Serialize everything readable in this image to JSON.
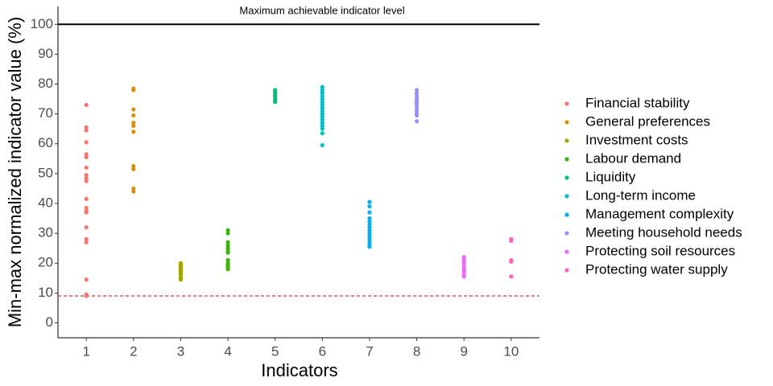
{
  "chart_data": {
    "type": "scatter",
    "x_label": "Indicators",
    "y_label": "Min-max normalized indicator value (%)",
    "annotation": "Maximum achievable indicator level",
    "xlim": [
      0.4,
      10.6
    ],
    "ylim": [
      -5,
      106
    ],
    "xticks": [
      1,
      2,
      3,
      4,
      5,
      6,
      7,
      8,
      9,
      10
    ],
    "yticks": [
      0,
      10,
      20,
      30,
      40,
      50,
      60,
      70,
      80,
      90,
      100
    ],
    "reference_lines": [
      {
        "y": 100,
        "color": "#000000",
        "dashed": false
      },
      {
        "y": 9,
        "color": "#e0302c",
        "dashed": true
      }
    ],
    "series": [
      {
        "name": "Financial stability",
        "color": "#F8766D",
        "x": [
          1,
          1,
          1,
          1,
          1,
          1,
          1,
          1,
          1,
          1,
          1,
          1,
          1,
          1,
          1,
          1,
          1,
          1,
          1,
          1
        ],
        "values": [
          73,
          65.5,
          64.5,
          60.5,
          56.5,
          55.5,
          52,
          49.5,
          48.5,
          47.5,
          41.5,
          38.5,
          37.5,
          37,
          32,
          28,
          27,
          14.5,
          9.5,
          9
        ]
      },
      {
        "name": "General preferences",
        "color": "#D89000",
        "x": [
          2,
          2,
          2,
          2,
          2,
          2,
          2,
          2,
          2,
          2,
          2
        ],
        "values": [
          78.5,
          78,
          71.5,
          69.5,
          67,
          66,
          64,
          52.5,
          51.5,
          45,
          44
        ]
      },
      {
        "name": "Investment costs",
        "color": "#A3A500",
        "x": [
          3,
          3,
          3,
          3,
          3,
          3,
          3,
          3,
          3,
          3,
          3
        ],
        "values": [
          20,
          19.5,
          19,
          18.5,
          18,
          17.5,
          17,
          16.5,
          16,
          15,
          14.5
        ]
      },
      {
        "name": "Labour demand",
        "color": "#39B600",
        "x": [
          4,
          4,
          4,
          4,
          4,
          4,
          4,
          4,
          4,
          4,
          4,
          4,
          4
        ],
        "values": [
          31,
          30,
          27,
          26,
          25,
          24,
          23.5,
          21,
          20,
          19.5,
          19,
          18.5,
          18
        ]
      },
      {
        "name": "Liquidity",
        "color": "#00BF7D",
        "x": [
          5,
          5,
          5,
          5,
          5,
          5,
          5,
          5,
          5
        ],
        "values": [
          78,
          77.5,
          77,
          76.5,
          76,
          75.5,
          75,
          74.5,
          74
        ]
      },
      {
        "name": "Long-term income",
        "color": "#00BFC4",
        "x": [
          6,
          6,
          6,
          6,
          6,
          6,
          6,
          6,
          6,
          6,
          6,
          6,
          6,
          6,
          6,
          6,
          6
        ],
        "values": [
          79,
          78,
          77,
          76,
          75,
          74,
          73,
          72,
          71,
          70,
          69,
          68,
          67,
          66,
          65,
          63.5,
          59.5
        ]
      },
      {
        "name": "Management complexity",
        "color": "#00B0F6",
        "x": [
          7,
          7,
          7,
          7,
          7,
          7,
          7,
          7,
          7,
          7,
          7,
          7,
          7,
          7
        ],
        "values": [
          40.5,
          39,
          37,
          35,
          34,
          33,
          32,
          31,
          30,
          29,
          28,
          27,
          26,
          25.5
        ]
      },
      {
        "name": "Meeting household needs",
        "color": "#9590FF",
        "x": [
          8,
          8,
          8,
          8,
          8,
          8,
          8,
          8,
          8,
          8,
          8,
          8,
          8
        ],
        "values": [
          78,
          77,
          76,
          75,
          74.5,
          74,
          73.5,
          73,
          72,
          71,
          70,
          69.5,
          67.5
        ]
      },
      {
        "name": "Protecting soil resources",
        "color": "#E76BF3",
        "x": [
          9,
          9,
          9,
          9,
          9,
          9,
          9,
          9,
          9,
          9
        ],
        "values": [
          22,
          21.5,
          21,
          20,
          19,
          18,
          17.5,
          17,
          16,
          15.5
        ]
      },
      {
        "name": "Protecting water supply",
        "color": "#FF62BC",
        "x": [
          10,
          10,
          10,
          10,
          10
        ],
        "values": [
          28,
          27.5,
          21,
          20.5,
          15.5
        ]
      }
    ]
  }
}
